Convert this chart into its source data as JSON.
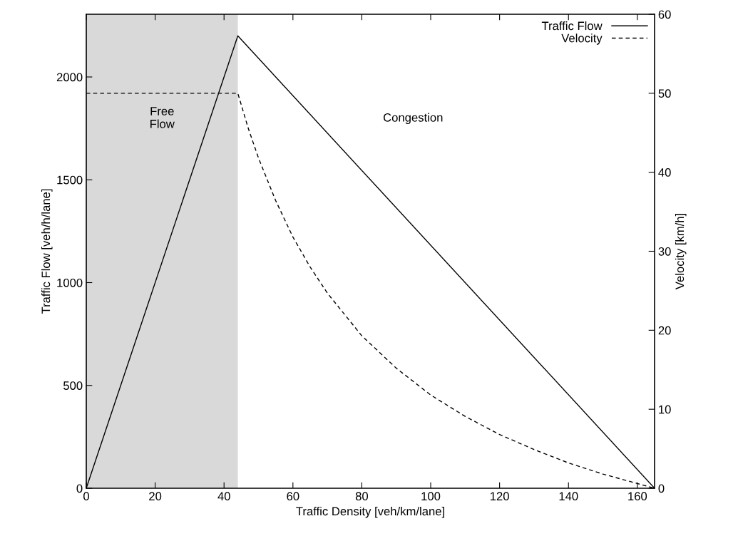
{
  "chart_data": {
    "type": "line",
    "xlabel": "Traffic Density [veh/km/lane]",
    "ylabel": "Traffic Flow [veh/h/lane]",
    "y2label": "Velocity [km/h]",
    "xlim": [
      0,
      165
    ],
    "xticks": [
      0,
      20,
      40,
      60,
      80,
      100,
      120,
      140,
      160
    ],
    "ylim": [
      0,
      2305
    ],
    "yticks": [
      0,
      500,
      1000,
      1500,
      2000
    ],
    "y2lim": [
      0,
      60
    ],
    "y2ticks": [
      0,
      10,
      20,
      30,
      40,
      50,
      60
    ],
    "series": [
      {
        "name": "Traffic Flow",
        "color": "#000000",
        "line_style": "solid",
        "x": [
          0,
          44,
          165
        ],
        "values": [
          0,
          2200,
          0
        ]
      },
      {
        "name": "Velocity",
        "color": "#000000",
        "line_style": "dashed",
        "axis": "y2",
        "x": [
          0,
          44,
          47,
          50,
          55,
          60,
          65,
          70,
          80,
          90,
          100,
          110,
          120,
          130,
          140,
          150,
          160,
          165
        ],
        "values": [
          50,
          50,
          45.6,
          41.8,
          36.4,
          31.8,
          28.0,
          24.7,
          19.3,
          15.2,
          11.8,
          9.1,
          6.8,
          4.9,
          3.2,
          1.8,
          0.6,
          0
        ]
      }
    ],
    "bands": [
      {
        "axis": "x",
        "from": 0,
        "to": 44,
        "label": "Free\nFlow",
        "color": "#d9d9d9"
      }
    ],
    "annotations": [
      "Congestion"
    ],
    "legend": "top right",
    "grid": false,
    "marker": "none"
  }
}
